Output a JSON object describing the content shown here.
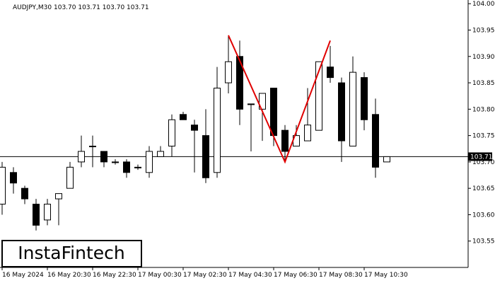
{
  "chart_data": {
    "type": "candlestick",
    "header": "AUDJPY,M30  103.70 103.71 103.70 103.71",
    "logo": "InstaFintech",
    "up_color": "#ffffff",
    "down_color": "#000000",
    "pattern_color": "#e00000",
    "open": [
      103.62,
      103.68,
      103.65,
      103.62,
      103.59,
      103.63,
      103.65,
      103.7,
      103.73,
      103.72,
      103.7,
      103.7,
      103.69,
      103.68,
      103.71,
      103.73,
      103.79,
      103.77,
      103.75,
      103.68,
      103.85,
      103.9,
      103.81,
      103.8,
      103.84,
      103.76,
      103.73,
      103.74,
      103.76,
      103.88,
      103.85,
      103.73,
      103.86,
      103.79,
      103.7
    ],
    "high": [
      103.7,
      103.69,
      103.655,
      103.63,
      103.63,
      103.64,
      103.7,
      103.75,
      103.75,
      103.72,
      103.705,
      103.705,
      103.695,
      103.73,
      103.73,
      103.79,
      103.795,
      103.78,
      103.8,
      103.88,
      103.94,
      103.93,
      103.81,
      103.83,
      103.84,
      103.77,
      103.77,
      103.84,
      103.89,
      103.92,
      103.86,
      103.9,
      103.87,
      103.82,
      103.71
    ],
    "low": [
      103.6,
      103.64,
      103.62,
      103.57,
      103.58,
      103.58,
      103.65,
      103.69,
      103.69,
      103.69,
      103.695,
      103.67,
      103.685,
      103.67,
      103.71,
      103.71,
      103.78,
      103.68,
      103.66,
      103.67,
      103.83,
      103.77,
      103.72,
      103.74,
      103.73,
      103.7,
      103.73,
      103.74,
      103.76,
      103.85,
      103.7,
      103.73,
      103.76,
      103.67,
      103.7
    ],
    "close": [
      103.69,
      103.66,
      103.63,
      103.58,
      103.62,
      103.64,
      103.69,
      103.72,
      103.73,
      103.7,
      103.7,
      103.68,
      103.69,
      103.72,
      103.72,
      103.78,
      103.78,
      103.76,
      103.67,
      103.84,
      103.89,
      103.8,
      103.81,
      103.83,
      103.75,
      103.72,
      103.75,
      103.77,
      103.89,
      103.86,
      103.74,
      103.87,
      103.78,
      103.69,
      103.71
    ],
    "pattern": [
      {
        "index": 20,
        "price": 103.94
      },
      {
        "index": 25,
        "price": 103.7
      },
      {
        "index": 29,
        "price": 103.93
      }
    ],
    "price_line": {
      "value": 103.71,
      "label": "103.71"
    },
    "ylim": [
      103.5,
      104.007
    ],
    "yticks": [
      {
        "value": 103.55,
        "label": "103.55"
      },
      {
        "value": 103.6,
        "label": "103.60"
      },
      {
        "value": 103.65,
        "label": "103.65"
      },
      {
        "value": 103.7,
        "label": "103.70"
      },
      {
        "value": 103.75,
        "label": "103.75"
      },
      {
        "value": 103.8,
        "label": "103.80"
      },
      {
        "value": 103.85,
        "label": "103.85"
      },
      {
        "value": 103.9,
        "label": "103.90"
      },
      {
        "value": 103.95,
        "label": "103.95"
      },
      {
        "value": 104,
        "label": "104.00"
      }
    ],
    "xticks": [
      {
        "value": 0,
        "label": "16 May 2024"
      },
      {
        "value": 4,
        "label": "16 May 20:30"
      },
      {
        "value": 8,
        "label": "16 May 22:30"
      },
      {
        "value": 12,
        "label": "17 May 00:30"
      },
      {
        "value": 16,
        "label": "17 May 02:30"
      },
      {
        "value": 20,
        "label": "17 May 04:30"
      },
      {
        "value": 24,
        "label": "17 May 06:30"
      },
      {
        "value": 28,
        "label": "17 May 08:30"
      },
      {
        "value": 32,
        "label": "17 May 10:30"
      }
    ]
  }
}
